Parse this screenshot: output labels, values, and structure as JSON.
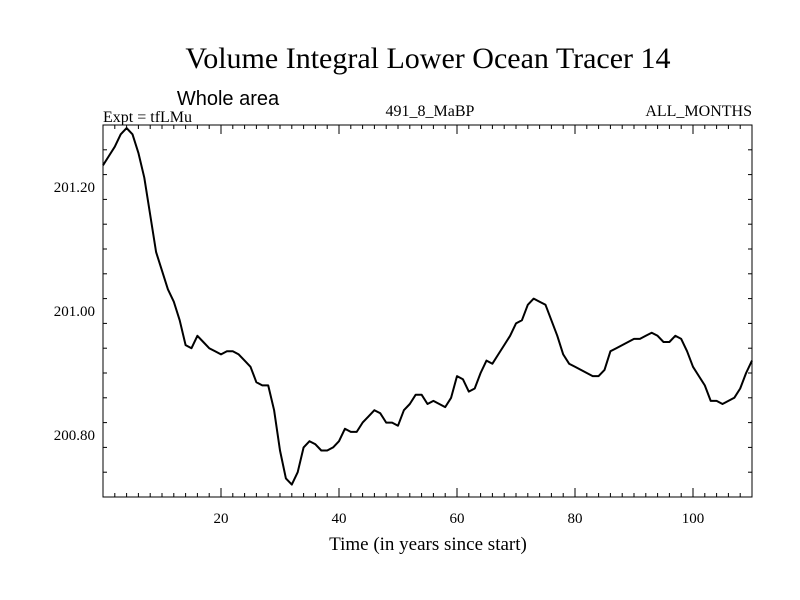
{
  "chart_data": {
    "type": "line",
    "title": "Volume Integral Lower Ocean Tracer 14",
    "subtitle": "Whole area",
    "expt_label": "Expt = tfLMu",
    "run_label": "491_8_MaBP",
    "period_label": "ALL_MONTHS",
    "xlabel": "Time (in years since start)",
    "ylabel": "",
    "xlim": [
      0,
      110
    ],
    "ylim": [
      200.7,
      201.3
    ],
    "xticks": [
      20,
      40,
      60,
      80,
      100
    ],
    "xtick_labels": [
      "20",
      "40",
      "60",
      "80",
      "100"
    ],
    "yticks": [
      200.8,
      201.0,
      201.2
    ],
    "ytick_labels": [
      "200.80",
      "201.00",
      "201.20"
    ],
    "grid": false,
    "series": [
      {
        "name": "tfLMu",
        "color": "#000000",
        "x": [
          0,
          1,
          2,
          3,
          4,
          5,
          6,
          7,
          8,
          9,
          10,
          11,
          12,
          13,
          14,
          15,
          16,
          17,
          18,
          19,
          20,
          21,
          22,
          23,
          24,
          25,
          26,
          27,
          28,
          29,
          30,
          31,
          32,
          33,
          34,
          35,
          36,
          37,
          38,
          39,
          40,
          41,
          42,
          43,
          44,
          45,
          46,
          47,
          48,
          49,
          50,
          51,
          52,
          53,
          54,
          55,
          56,
          57,
          58,
          59,
          60,
          61,
          62,
          63,
          64,
          65,
          66,
          67,
          68,
          69,
          70,
          71,
          72,
          73,
          74,
          75,
          76,
          77,
          78,
          79,
          80,
          81,
          82,
          83,
          84,
          85,
          86,
          87,
          88,
          89,
          90,
          91,
          92,
          93,
          94,
          95,
          96,
          97,
          98,
          99,
          100,
          101,
          102,
          103,
          104,
          105,
          106,
          107,
          108,
          109,
          110
        ],
        "values": [
          201.235,
          201.25,
          201.265,
          201.285,
          201.295,
          201.285,
          201.255,
          201.215,
          201.155,
          201.095,
          201.065,
          201.035,
          201.015,
          200.985,
          200.945,
          200.94,
          200.96,
          200.95,
          200.94,
          200.935,
          200.93,
          200.935,
          200.935,
          200.93,
          200.92,
          200.91,
          200.885,
          200.88,
          200.88,
          200.84,
          200.775,
          200.73,
          200.72,
          200.74,
          200.78,
          200.79,
          200.785,
          200.775,
          200.775,
          200.78,
          200.79,
          200.81,
          200.805,
          200.805,
          200.82,
          200.83,
          200.84,
          200.835,
          200.82,
          200.82,
          200.815,
          200.84,
          200.85,
          200.865,
          200.865,
          200.85,
          200.855,
          200.85,
          200.845,
          200.86,
          200.895,
          200.89,
          200.87,
          200.875,
          200.9,
          200.92,
          200.915,
          200.93,
          200.945,
          200.96,
          200.98,
          200.985,
          201.01,
          201.02,
          201.015,
          201.01,
          200.985,
          200.96,
          200.93,
          200.915,
          200.91,
          200.905,
          200.9,
          200.895,
          200.895,
          200.905,
          200.935,
          200.94,
          200.945,
          200.95,
          200.955,
          200.955,
          200.96,
          200.965,
          200.96,
          200.95,
          200.95,
          200.96,
          200.955,
          200.935,
          200.91,
          200.895,
          200.88,
          200.855,
          200.855,
          200.85,
          200.855,
          200.86,
          200.875,
          200.9,
          200.92
        ]
      }
    ]
  }
}
